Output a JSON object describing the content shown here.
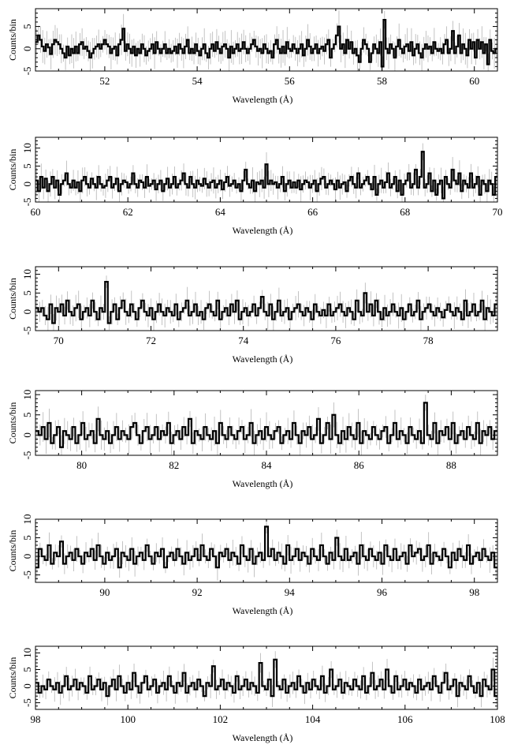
{
  "chart_data": [
    {
      "type": "line",
      "xlabel": "Wavelength (Å)",
      "ylabel": "Counts/bin",
      "xlim": [
        50.5,
        60.5
      ],
      "ylim": [
        -5,
        9
      ],
      "x_ticks": [
        52,
        54,
        56,
        58,
        60
      ],
      "y_ticks": [
        -5,
        0,
        5
      ],
      "series": [
        {
          "values": [
            1.5,
            3,
            2,
            0.5,
            -0.5,
            1,
            0.3,
            -1.2,
            1,
            2,
            1.5,
            1,
            0,
            -1,
            -2,
            0.5,
            -1.5,
            0,
            -1,
            0.5,
            -1,
            1,
            1.5,
            0,
            0.5,
            -0.5,
            -2,
            -1,
            0,
            0.5,
            1,
            0,
            1,
            2,
            1,
            0.5,
            -1,
            0,
            0.5,
            -1.5,
            1,
            2,
            4.5,
            -0.5,
            1,
            0,
            -1,
            0.5,
            -1.5,
            0,
            -1,
            1,
            0,
            -1.5,
            -0.5,
            0,
            1,
            -1,
            1.5,
            0,
            -1,
            0,
            1,
            -1,
            0,
            -1,
            -0.5,
            0.5,
            -1,
            1,
            0,
            -1,
            0.5,
            2,
            -1,
            0,
            -1,
            1,
            -0.5,
            -1.5,
            0,
            1,
            -1,
            -2,
            0,
            1,
            -0.5,
            1.5,
            0,
            -1,
            0.5,
            1,
            0,
            -2,
            0.5,
            -1,
            0,
            1,
            -0.5,
            0,
            1.5,
            0,
            -1,
            0,
            1,
            2,
            0.5,
            -0.5,
            0,
            -1,
            1,
            0,
            -1,
            -0.5,
            -2,
            1,
            2,
            0,
            -1,
            0.5,
            -1,
            1.5,
            0,
            -0.5,
            1,
            0,
            -1,
            0,
            1,
            -1.5,
            0,
            2,
            0.5,
            -1,
            0,
            1,
            -1,
            0,
            0.5,
            -0.5,
            1,
            2,
            -2,
            0,
            1,
            3,
            5,
            0,
            1,
            -1,
            2,
            0,
            1.5,
            -1,
            0,
            -1.5,
            -3,
            0,
            2,
            1,
            0,
            -3,
            -1,
            1,
            0,
            -1,
            1.5,
            -4,
            6.5,
            0,
            -1,
            1,
            0,
            -2,
            0.5,
            2,
            0,
            -1,
            0.5,
            1,
            -0.5,
            1.5,
            -1.5,
            0,
            1,
            -1,
            -2,
            0,
            1,
            0,
            0.5,
            -1,
            1.5,
            0,
            -0.5,
            0,
            -1,
            1,
            2,
            -1,
            0,
            4,
            -1,
            0.5,
            3,
            -1,
            1,
            0,
            -1.5,
            2,
            0,
            1.5,
            -2,
            2,
            0,
            1.5,
            -1,
            1,
            -3.5,
            2,
            -0.5,
            -1,
            0
          ]
        }
      ]
    },
    {
      "type": "line",
      "xlabel": "Wavelength (Å)",
      "ylabel": "Counts/bin",
      "xlim": [
        60,
        70
      ],
      "ylim": [
        -5,
        13
      ],
      "x_ticks": [
        60,
        62,
        64,
        66,
        68,
        70
      ],
      "y_ticks": [
        -5,
        0,
        5,
        10
      ],
      "series": [
        {
          "values": [
            1,
            -2,
            2,
            -1,
            1.5,
            -2,
            0,
            2,
            -1,
            1,
            -3,
            0,
            1,
            3,
            0,
            -1,
            1,
            -1,
            0.5,
            -2,
            1,
            2,
            0,
            -1,
            1.5,
            0,
            -1,
            2,
            0,
            -1,
            -0.5,
            1,
            2,
            -1,
            0,
            1.5,
            -2,
            0,
            1,
            0.5,
            -1,
            0,
            3,
            0,
            -1,
            1,
            0.5,
            -1,
            2,
            -0.5,
            0,
            1,
            -1.5,
            0,
            1,
            -2,
            0,
            1.5,
            -1,
            0,
            2,
            -1,
            0,
            1,
            3,
            0,
            -1,
            2,
            0,
            -1,
            1,
            0,
            -0.5,
            1.5,
            0,
            -1,
            0.5,
            1,
            -1,
            0,
            1,
            -1.5,
            0.5,
            2,
            -0.5,
            0,
            1,
            -1,
            0,
            -2,
            1,
            4,
            0,
            -1,
            1,
            -2,
            0.5,
            0,
            1,
            -1,
            5.5,
            0,
            1,
            0,
            0.5,
            -1,
            0,
            2,
            -2,
            0,
            1,
            -1,
            0.5,
            -1,
            1,
            -1.5,
            0,
            1,
            0.5,
            -1,
            0,
            1,
            -2,
            0,
            1.5,
            2,
            -1,
            0,
            1,
            0,
            -1.5,
            1,
            -1,
            0,
            0.5,
            -2,
            1,
            2,
            0,
            -1,
            3,
            -1,
            0,
            1,
            2,
            0,
            -1.5,
            2,
            -3,
            0,
            1,
            -1,
            0.5,
            3,
            -1,
            0,
            2,
            -2,
            1,
            -3,
            0,
            1,
            3,
            -1,
            0,
            4,
            -1,
            2,
            9,
            -1,
            0,
            3,
            -2,
            1,
            -3,
            0,
            1,
            -4,
            2,
            0,
            -1,
            4,
            1,
            0,
            3,
            -2,
            1,
            0,
            -1,
            3,
            -1,
            0,
            2,
            -3,
            1,
            0,
            -2,
            1,
            0,
            -3,
            2
          ]
        }
      ]
    },
    {
      "type": "line",
      "xlabel": "Wavelength (Å)",
      "ylabel": "Counts/bin",
      "xlim": [
        69.5,
        79.5
      ],
      "ylim": [
        -5,
        12
      ],
      "x_ticks": [
        70,
        72,
        74,
        76,
        78
      ],
      "y_ticks": [
        -5,
        0,
        5,
        10
      ],
      "series": [
        {
          "values": [
            1,
            0,
            1,
            -1,
            -2,
            2,
            -3,
            1,
            0,
            2,
            -1,
            3,
            0,
            -1,
            1,
            2,
            -2,
            0,
            1,
            -1,
            3,
            0,
            -2,
            1,
            0,
            8,
            -3,
            0,
            2,
            -2,
            1,
            3,
            0,
            -1,
            2,
            0,
            -2,
            1,
            3,
            0,
            -1,
            1,
            -2,
            0,
            2,
            0,
            -1,
            1,
            0,
            -1,
            2,
            -2,
            0,
            1,
            3,
            -1,
            0,
            2,
            -1,
            0,
            -2,
            1,
            2,
            0,
            -1,
            3,
            -2,
            0,
            1,
            -1,
            2,
            0,
            3,
            -2,
            0,
            1,
            -1,
            0,
            2,
            -1,
            1,
            4,
            0,
            -1,
            2,
            -2,
            0,
            3,
            -1,
            0,
            1,
            -2,
            0,
            1,
            2,
            0,
            -1,
            1,
            0,
            -2,
            2,
            0,
            -1,
            0.5,
            -1,
            2,
            -1,
            0,
            1,
            2,
            0,
            -1,
            1,
            0,
            -2,
            3,
            0,
            -1,
            5,
            0,
            2,
            -1,
            3,
            0,
            -2,
            1,
            -1,
            0,
            2,
            0,
            -1,
            1,
            -2,
            0,
            2,
            -1,
            0,
            3,
            -2,
            0,
            1,
            2,
            0,
            -1,
            1,
            0,
            -1.5,
            0.5,
            2,
            0,
            -1,
            1,
            0,
            -2,
            3,
            -1,
            0,
            2,
            -1,
            0,
            3,
            -2,
            1,
            0,
            -1,
            2
          ]
        }
      ]
    },
    {
      "type": "line",
      "xlabel": "Wavelength (Å)",
      "ylabel": "Counts/bin",
      "xlim": [
        79,
        89
      ],
      "ylim": [
        -5,
        11
      ],
      "x_ticks": [
        80,
        82,
        84,
        86,
        88
      ],
      "y_ticks": [
        -5,
        0,
        5,
        10
      ],
      "series": [
        {
          "values": [
            1,
            0,
            2,
            -1,
            3,
            -2,
            0,
            2,
            -3,
            1,
            0,
            -1,
            2,
            -2,
            0,
            3,
            -1,
            0,
            1,
            -2,
            4,
            0,
            -1,
            1,
            -2,
            0,
            2,
            -1,
            1,
            0,
            -1,
            2,
            3,
            0,
            -2,
            1,
            2,
            -1,
            0,
            2,
            -1,
            1,
            0,
            3,
            -2,
            0,
            1,
            -1,
            2,
            0,
            4,
            -2,
            1,
            0,
            -1,
            2,
            0,
            -1,
            1,
            -2,
            3,
            0,
            -1,
            2,
            0,
            -1,
            1,
            2,
            -1,
            0,
            3,
            -2,
            0,
            1,
            -1,
            2,
            0,
            -1,
            1,
            2,
            -2,
            0,
            1,
            -1,
            3,
            0,
            -2,
            1,
            0,
            2,
            -1,
            0,
            4,
            -2,
            0,
            3,
            -1,
            5,
            0,
            -2,
            1,
            -1,
            2,
            0,
            -1,
            3,
            -2,
            1,
            0,
            -1,
            2,
            0,
            -1,
            1,
            2,
            -2,
            0,
            3,
            -1,
            1,
            0,
            -2,
            2,
            0,
            -1,
            1,
            -2,
            8,
            0,
            -1,
            3,
            -2,
            1,
            0,
            2,
            -1,
            3,
            -2,
            0,
            1,
            -1,
            2,
            0,
            -1,
            3,
            -2,
            1,
            0,
            2,
            -1,
            1
          ]
        }
      ]
    },
    {
      "type": "line",
      "xlabel": "Wavelength (Å)",
      "ylabel": "Counts/bin",
      "xlim": [
        88.5,
        98.5
      ],
      "ylim": [
        -7,
        10
      ],
      "x_ticks": [
        90,
        92,
        94,
        96,
        98
      ],
      "y_ticks": [
        -5,
        0,
        5,
        10
      ],
      "series": [
        {
          "values": [
            -3,
            2,
            0,
            -1,
            3,
            -2,
            1,
            0,
            4,
            -2,
            0,
            1,
            -1,
            2,
            0,
            -2,
            1,
            0,
            2,
            -1,
            3,
            0,
            -2,
            1,
            -1,
            0,
            2,
            -3,
            1,
            0,
            -1,
            2,
            -2,
            0,
            1,
            -1,
            3,
            0,
            -2,
            1,
            0,
            2,
            -3,
            0,
            1,
            -1,
            2,
            0,
            -2,
            1,
            -1,
            0,
            2,
            -1,
            3,
            0,
            -1,
            2,
            0,
            -3,
            1,
            0,
            2,
            -1,
            1,
            0,
            -2,
            3,
            0,
            -1,
            2,
            -2,
            0,
            1,
            -1,
            8,
            0,
            2,
            -1,
            1,
            0,
            -2,
            3,
            -1,
            0,
            2,
            -1,
            1,
            0,
            -2,
            2,
            0,
            -1,
            3,
            0,
            -2,
            1,
            -1,
            5,
            0,
            -1,
            2,
            -1,
            0,
            1,
            -2,
            3,
            0,
            -1,
            2,
            0,
            -1,
            1,
            -2,
            3,
            0,
            -1,
            2,
            -1,
            0,
            1,
            -2,
            3,
            0,
            1,
            2,
            -1,
            0,
            3,
            -2,
            1,
            0,
            -1,
            2,
            0,
            -3,
            1,
            -1,
            2,
            0,
            -1,
            3,
            -2,
            0,
            1,
            -1,
            2,
            0,
            -1,
            1,
            -3
          ]
        }
      ]
    },
    {
      "type": "line",
      "xlabel": "Wavelength (Å)",
      "ylabel": "Counts/bin",
      "xlim": [
        98,
        108
      ],
      "ylim": [
        -7,
        12
      ],
      "x_ticks": [
        98,
        100,
        102,
        104,
        106,
        108
      ],
      "y_ticks": [
        -5,
        0,
        5,
        10
      ],
      "series": [
        {
          "values": [
            1,
            -2,
            0,
            -1,
            2,
            0,
            -1,
            1,
            -2,
            0,
            3,
            -1,
            0,
            2,
            -1,
            1,
            0,
            -2,
            3,
            -1,
            0,
            2,
            -1,
            1,
            -3,
            0,
            2,
            -1,
            3,
            0,
            -2,
            1,
            -1,
            4,
            0,
            -2,
            1,
            3,
            -1,
            0,
            2,
            -2,
            0,
            1,
            -1,
            3,
            0,
            -2,
            1,
            0,
            4,
            -2,
            0,
            1,
            -1,
            2,
            0,
            -3,
            1,
            0,
            6,
            -1,
            0,
            2,
            -1,
            1,
            0,
            -2,
            3,
            -1,
            0,
            2,
            -1,
            1,
            0,
            -2,
            7,
            0,
            -1,
            2,
            -3,
            8,
            0,
            -1,
            2,
            -2,
            0,
            1,
            -1,
            3,
            0,
            -2,
            1,
            -1,
            2,
            0,
            -1,
            3,
            -2,
            0,
            5,
            -1,
            0,
            2,
            -2,
            1,
            0,
            -1,
            2,
            0,
            -1,
            3,
            -2,
            0,
            4,
            -1,
            0,
            2,
            -1,
            5,
            0,
            -2,
            3,
            -1,
            0,
            2,
            -1,
            1,
            0,
            -2,
            2,
            -1,
            0,
            1,
            -1,
            3,
            0,
            -2,
            1,
            4,
            -1,
            0,
            2,
            -3,
            1,
            0,
            -1,
            3,
            0,
            -2,
            1,
            -3,
            2,
            0,
            -1,
            5,
            -3
          ]
        }
      ]
    }
  ]
}
